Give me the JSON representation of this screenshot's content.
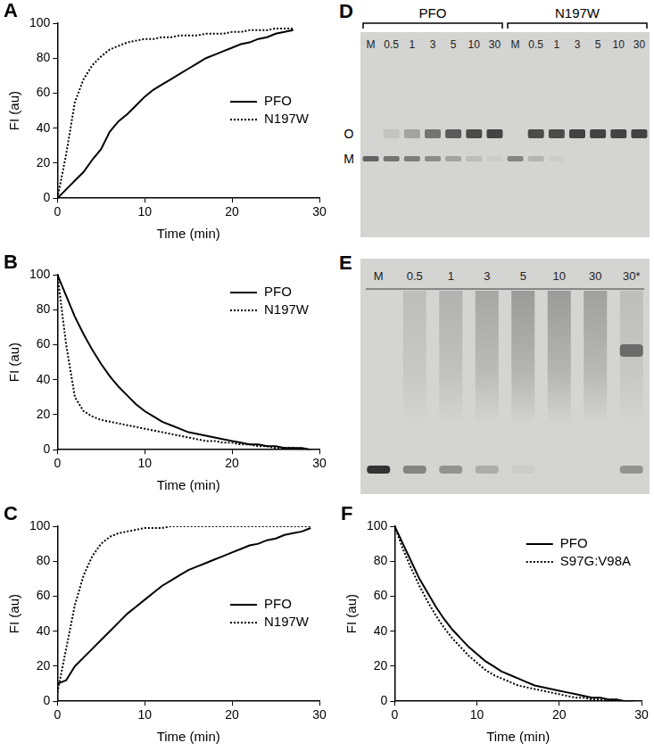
{
  "chart_data": [
    {
      "type": "line",
      "title": "A",
      "x_label": "Time (min)",
      "y_label": "FI (au)",
      "xlim": [
        0,
        30
      ],
      "xticks": [
        0,
        10,
        20,
        30
      ],
      "ylim": [
        0,
        100
      ],
      "yticks": [
        0,
        20,
        40,
        60,
        80,
        100
      ],
      "grid": false,
      "legend": "center right",
      "x": [
        0,
        1,
        2,
        3,
        4,
        5,
        6,
        7,
        8,
        9,
        10,
        11,
        12,
        13,
        14,
        15,
        16,
        17,
        18,
        19,
        20,
        21,
        22,
        23,
        24,
        25,
        26,
        27
      ],
      "series": [
        {
          "name": "PFO",
          "color": "#000000",
          "line_style": "solid",
          "values": [
            0,
            5,
            10,
            15,
            22,
            28,
            38,
            44,
            48,
            53,
            58,
            62,
            65,
            68,
            71,
            74,
            77,
            80,
            82,
            84,
            86,
            88,
            89,
            91,
            92,
            94,
            95,
            96
          ]
        },
        {
          "name": "N197W",
          "color": "#000000",
          "line_style": "dotted",
          "values": [
            0,
            25,
            55,
            68,
            76,
            81,
            85,
            87,
            89,
            90,
            91,
            91,
            92,
            92,
            93,
            93,
            93,
            94,
            94,
            94,
            95,
            95,
            96,
            96,
            96,
            97,
            97,
            97
          ]
        }
      ]
    },
    {
      "type": "line",
      "title": "B",
      "x_label": "Time (min)",
      "y_label": "FI (au)",
      "xlim": [
        0,
        30
      ],
      "xticks": [
        0,
        10,
        20,
        30
      ],
      "ylim": [
        0,
        100
      ],
      "yticks": [
        0,
        20,
        40,
        60,
        80,
        100
      ],
      "grid": false,
      "legend": "upper right",
      "x": [
        0,
        1,
        2,
        3,
        4,
        5,
        6,
        7,
        8,
        9,
        10,
        11,
        12,
        13,
        14,
        15,
        16,
        17,
        18,
        19,
        20,
        21,
        22,
        23,
        24,
        25,
        26,
        27,
        28,
        29
      ],
      "series": [
        {
          "name": "PFO",
          "color": "#000000",
          "line_style": "solid",
          "values": [
            100,
            88,
            76,
            66,
            57,
            49,
            42,
            36,
            31,
            26,
            22,
            19,
            16,
            14,
            12,
            10,
            9,
            8,
            7,
            6,
            5,
            4,
            3,
            3,
            2,
            2,
            1,
            1,
            1,
            0
          ]
        },
        {
          "name": "N197W",
          "color": "#000000",
          "line_style": "dotted",
          "values": [
            100,
            60,
            30,
            22,
            19,
            17,
            16,
            15,
            14,
            13,
            12,
            11,
            10,
            9,
            8,
            7,
            6,
            5,
            5,
            4,
            4,
            3,
            3,
            2,
            2,
            1,
            1,
            1,
            0,
            0
          ]
        }
      ]
    },
    {
      "type": "line",
      "title": "C",
      "x_label": "Time (min)",
      "y_label": "FI (au)",
      "xlim": [
        0,
        30
      ],
      "xticks": [
        0,
        10,
        20,
        30
      ],
      "ylim": [
        0,
        100
      ],
      "yticks": [
        0,
        20,
        40,
        60,
        80,
        100
      ],
      "grid": false,
      "legend": "center right",
      "x": [
        0,
        1,
        2,
        3,
        4,
        5,
        6,
        7,
        8,
        9,
        10,
        11,
        12,
        13,
        14,
        15,
        16,
        17,
        18,
        19,
        20,
        21,
        22,
        23,
        24,
        25,
        26,
        27,
        28,
        29
      ],
      "series": [
        {
          "name": "PFO",
          "color": "#000000",
          "line_style": "solid",
          "values": [
            10,
            12,
            20,
            25,
            30,
            35,
            40,
            45,
            50,
            54,
            58,
            62,
            66,
            69,
            72,
            75,
            77,
            79,
            81,
            83,
            85,
            87,
            89,
            90,
            92,
            93,
            95,
            96,
            97,
            99
          ]
        },
        {
          "name": "N197W",
          "color": "#000000",
          "line_style": "dotted",
          "values": [
            5,
            30,
            55,
            72,
            83,
            90,
            94,
            96,
            97,
            98,
            99,
            99,
            99,
            100,
            100,
            100,
            100,
            100,
            100,
            100,
            100,
            100,
            100,
            100,
            100,
            100,
            100,
            100,
            100,
            100
          ]
        }
      ]
    },
    {
      "type": "line",
      "title": "F",
      "x_label": "Time (min)",
      "y_label": "FI (au)",
      "xlim": [
        0,
        30
      ],
      "xticks": [
        0,
        10,
        20,
        30
      ],
      "ylim": [
        0,
        100
      ],
      "yticks": [
        0,
        20,
        40,
        60,
        80,
        100
      ],
      "grid": false,
      "legend": "upper right",
      "x": [
        0,
        1,
        2,
        3,
        4,
        5,
        6,
        7,
        8,
        9,
        10,
        11,
        12,
        13,
        14,
        15,
        16,
        17,
        18,
        19,
        20,
        21,
        22,
        23,
        24,
        25,
        26,
        27,
        28,
        29
      ],
      "series": [
        {
          "name": "PFO",
          "color": "#000000",
          "line_style": "solid",
          "values": [
            100,
            90,
            80,
            70,
            62,
            54,
            47,
            41,
            36,
            31,
            27,
            23,
            20,
            17,
            15,
            13,
            11,
            9,
            8,
            7,
            6,
            5,
            4,
            3,
            2,
            2,
            1,
            1,
            0,
            0
          ]
        },
        {
          "name": "S97G:V98A",
          "color": "#000000",
          "line_style": "dotted",
          "values": [
            100,
            87,
            76,
            66,
            57,
            49,
            42,
            36,
            31,
            26,
            22,
            18,
            15,
            13,
            11,
            9,
            8,
            7,
            6,
            5,
            4,
            3,
            2,
            2,
            1,
            1,
            0,
            0,
            0,
            0
          ]
        }
      ]
    }
  ],
  "gels": [
    {
      "title": "D",
      "row_labels": [
        "O",
        "M"
      ],
      "groups": [
        {
          "name": "PFO",
          "lanes": [
            {
              "label": "M",
              "oligomer": 0,
              "monomer": 0.7
            },
            {
              "label": "0.5",
              "oligomer": 0.1,
              "monomer": 0.6
            },
            {
              "label": "1",
              "oligomer": 0.3,
              "monomer": 0.55
            },
            {
              "label": "3",
              "oligomer": 0.6,
              "monomer": 0.45
            },
            {
              "label": "5",
              "oligomer": 0.75,
              "monomer": 0.3
            },
            {
              "label": "10",
              "oligomer": 0.85,
              "monomer": 0.15
            },
            {
              "label": "30",
              "oligomer": 0.9,
              "monomer": 0.05
            }
          ]
        },
        {
          "name": "N197W",
          "lanes": [
            {
              "label": "M",
              "oligomer": 0,
              "monomer": 0.5
            },
            {
              "label": "0.5",
              "oligomer": 0.85,
              "monomer": 0.2
            },
            {
              "label": "1",
              "oligomer": 0.85,
              "monomer": 0.05
            },
            {
              "label": "3",
              "oligomer": 0.9,
              "monomer": 0
            },
            {
              "label": "5",
              "oligomer": 0.9,
              "monomer": 0
            },
            {
              "label": "10",
              "oligomer": 0.9,
              "monomer": 0
            },
            {
              "label": "30",
              "oligomer": 0.9,
              "monomer": 0
            }
          ]
        }
      ]
    },
    {
      "title": "E",
      "lanes": [
        {
          "label": "M",
          "smear": 0,
          "band": 0,
          "monomer": 1
        },
        {
          "label": "0.5",
          "smear": 0.2,
          "band": 0,
          "monomer": 0.5
        },
        {
          "label": "1",
          "smear": 0.3,
          "band": 0,
          "monomer": 0.4
        },
        {
          "label": "3",
          "smear": 0.4,
          "band": 0,
          "monomer": 0.25
        },
        {
          "label": "5",
          "smear": 0.5,
          "band": 0,
          "monomer": 0.05
        },
        {
          "label": "10",
          "smear": 0.5,
          "band": 0,
          "monomer": 0
        },
        {
          "label": "30",
          "smear": 0.45,
          "band": 0,
          "monomer": 0
        },
        {
          "label": "30*",
          "smear": 0.2,
          "band": 0.7,
          "monomer": 0.4
        }
      ]
    }
  ]
}
